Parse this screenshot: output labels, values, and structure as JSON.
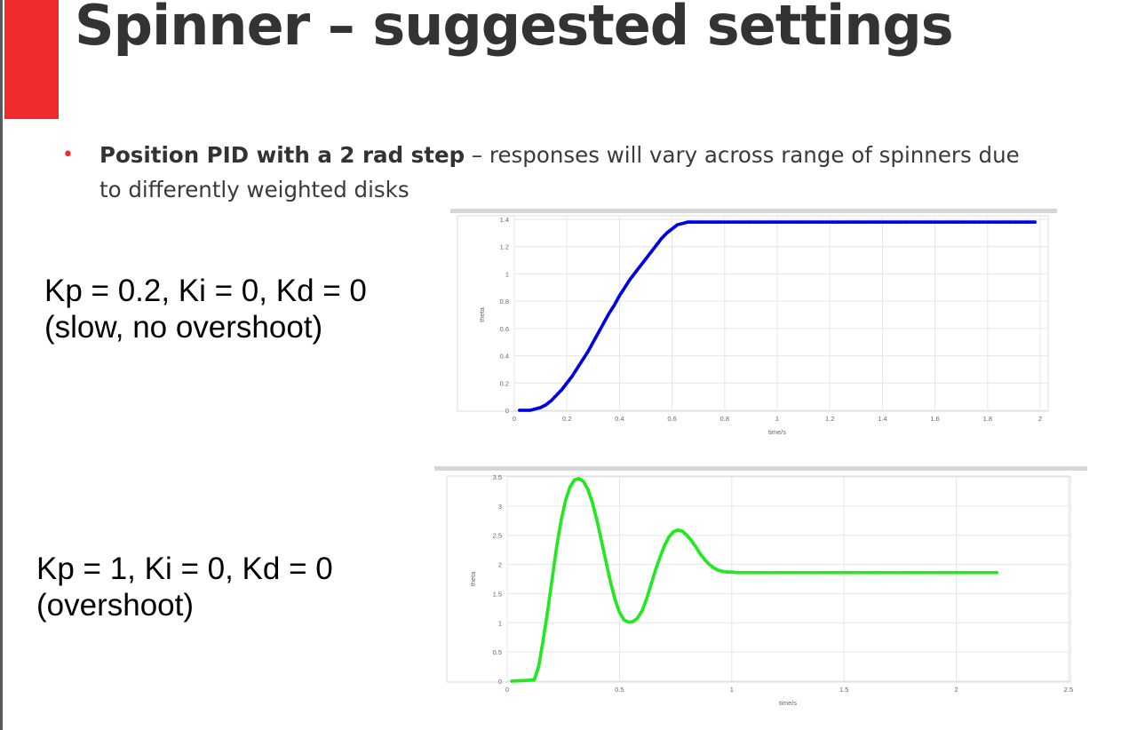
{
  "slide": {
    "title": "Spinner – suggested settings",
    "bullet": {
      "bold": "Position PID with a 2 rad step",
      "rest": " – responses will vary across range of spinners due to differently weighted disks"
    },
    "captions": [
      {
        "line1": "Kp = 0.2, Ki = 0, Kd = 0",
        "line2": "(slow, no overshoot)"
      },
      {
        "line1": "Kp = 1, Ki = 0, Kd = 0",
        "line2": "(overshoot)"
      }
    ]
  },
  "colors": {
    "accent": "#ef2b2d",
    "title": "#333333",
    "series1": "#0000e0",
    "series2": "#22e822"
  },
  "chart_data": [
    {
      "type": "scatter",
      "xlabel": "time/s",
      "ylabel": "theta",
      "xlim": [
        0,
        2
      ],
      "ylim": [
        0,
        1.4
      ],
      "xticks": [
        0,
        0.2,
        0.4,
        0.6,
        0.8,
        1,
        1.2,
        1.4,
        1.6,
        1.8,
        2
      ],
      "yticks": [
        0,
        0.2,
        0.4,
        0.6,
        0.8,
        1,
        1.2,
        1.4
      ],
      "xtick_labels": [
        "0",
        "0.2",
        "0.4",
        "0.6",
        "0.8",
        "1",
        "1.2",
        "1.4",
        "1.6",
        "1.8",
        "2"
      ],
      "ytick_labels": [
        "0",
        "0.2",
        "0.4",
        "0.6",
        "0.8",
        "1",
        "1.2",
        "1.4"
      ],
      "grid": true,
      "color": "#0000e0",
      "series": [
        {
          "x": [
            0.02,
            0.06,
            0.08,
            0.1,
            0.12,
            0.14,
            0.16,
            0.18,
            0.2,
            0.22,
            0.24,
            0.26,
            0.28,
            0.3,
            0.32,
            0.34,
            0.36,
            0.38,
            0.4,
            0.42,
            0.44,
            0.46,
            0.48,
            0.5,
            0.52,
            0.54,
            0.56,
            0.58,
            0.6,
            0.62,
            0.64,
            0.66,
            0.68,
            1.98
          ],
          "y": [
            0.0,
            0.0,
            0.01,
            0.02,
            0.04,
            0.07,
            0.11,
            0.15,
            0.2,
            0.25,
            0.31,
            0.37,
            0.43,
            0.5,
            0.57,
            0.64,
            0.71,
            0.77,
            0.84,
            0.9,
            0.96,
            1.01,
            1.06,
            1.11,
            1.16,
            1.21,
            1.26,
            1.3,
            1.33,
            1.36,
            1.37,
            1.38,
            1.38,
            1.38
          ]
        }
      ]
    },
    {
      "type": "scatter",
      "xlabel": "time/s",
      "ylabel": "theta",
      "xlim": [
        0,
        2.5
      ],
      "ylim": [
        0,
        3.5
      ],
      "xticks": [
        0,
        0.5,
        1,
        1.5,
        2,
        2.5
      ],
      "yticks": [
        0,
        0.5,
        1,
        1.5,
        2,
        2.5,
        3,
        3.5
      ],
      "xtick_labels": [
        "0",
        "0.5",
        "1",
        "1.5",
        "2",
        "2.5"
      ],
      "ytick_labels": [
        "0",
        "0.5",
        "1",
        "1.5",
        "2",
        "2.5",
        "3",
        "3.5"
      ],
      "grid": true,
      "color": "#22e822",
      "series": [
        {
          "x": [
            0.02,
            0.12,
            0.14,
            0.16,
            0.18,
            0.2,
            0.22,
            0.24,
            0.26,
            0.28,
            0.3,
            0.32,
            0.34,
            0.36,
            0.38,
            0.4,
            0.42,
            0.44,
            0.46,
            0.48,
            0.5,
            0.52,
            0.54,
            0.56,
            0.58,
            0.6,
            0.62,
            0.64,
            0.66,
            0.68,
            0.7,
            0.72,
            0.74,
            0.76,
            0.78,
            0.8,
            0.82,
            0.84,
            0.86,
            0.88,
            0.9,
            0.92,
            0.94,
            0.96,
            0.98,
            1.0,
            1.02,
            1.04,
            1.06,
            1.08,
            1.1,
            2.18
          ],
          "y": [
            0.0,
            0.02,
            0.25,
            0.7,
            1.2,
            1.75,
            2.3,
            2.75,
            3.1,
            3.33,
            3.45,
            3.47,
            3.42,
            3.28,
            3.05,
            2.75,
            2.4,
            2.05,
            1.7,
            1.4,
            1.18,
            1.05,
            1.01,
            1.02,
            1.08,
            1.2,
            1.4,
            1.65,
            1.9,
            2.12,
            2.32,
            2.47,
            2.56,
            2.59,
            2.57,
            2.5,
            2.41,
            2.3,
            2.18,
            2.08,
            2.0,
            1.94,
            1.9,
            1.88,
            1.87,
            1.87,
            1.86,
            1.86,
            1.86,
            1.86,
            1.86,
            1.86
          ]
        }
      ]
    }
  ]
}
